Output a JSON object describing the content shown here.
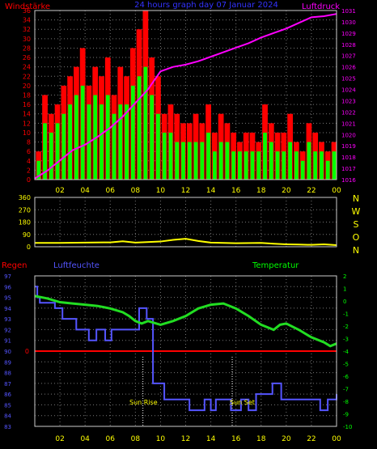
{
  "header": {
    "left": "Windstärke",
    "center": "24 hours graph day  07 Januar 2024",
    "right": "Luftdruck"
  },
  "colors": {
    "background": "#000000",
    "wind_gust": "#ff0000",
    "wind_avg": "#00ff00",
    "pressure": "#ff00ff",
    "wind_dir": "#ffff00",
    "rain": "#ff0000",
    "humidity": "#5555ff",
    "temperature": "#22dd22",
    "left_axis": "#ff0000",
    "right_axis_top": "#ff00ff",
    "right_axis_mid": "#ffff00",
    "humidity_axis": "#5555ff",
    "temperature_axis": "#00ff00",
    "hour_axis": "#ffff00",
    "frame": "#cccccc",
    "grid": "#777777"
  },
  "x_ticks": [
    "02",
    "04",
    "06",
    "08",
    "10",
    "12",
    "14",
    "16",
    "18",
    "20",
    "22",
    "00"
  ],
  "dir_labels": [
    "N",
    "W",
    "S",
    "O",
    "N"
  ],
  "bottom_labels": {
    "rain": "Regen",
    "humidity": "Luftfeuchte",
    "temperature": "Temperatur",
    "sunrise": "Sun Rise",
    "sunset": "Sun Set"
  },
  "chart_data": [
    {
      "type": "bar",
      "title": "24 hours graph day  07 Januar 2024",
      "xlabel": "",
      "ylabel": "Windstärke",
      "y2label": "Luftdruck",
      "x_range": [
        0,
        24
      ],
      "ylim": [
        0,
        36
      ],
      "y_ticks": [
        "0",
        "2",
        "4",
        "6",
        "8",
        "10",
        "12",
        "14",
        "16",
        "18",
        "20",
        "22",
        "24",
        "26",
        "28",
        "30",
        "32",
        "34",
        "36"
      ],
      "y2lim": [
        1016,
        1031
      ],
      "y2_ticks": [
        "1016",
        "1017",
        "1018",
        "1019",
        "1020",
        "1021",
        "1022",
        "1023",
        "1024",
        "1025",
        "1026",
        "1027",
        "1028",
        "1029",
        "1030",
        "1031"
      ],
      "series": [
        {
          "name": "Windstärke",
          "style": "bars",
          "x": [
            0.5,
            1,
            1.5,
            2,
            2.5,
            3,
            3.5,
            4,
            4.5,
            5,
            5.5,
            6,
            6.5,
            7,
            7.5,
            8,
            8.5,
            9,
            9.5,
            10,
            10.5,
            11,
            11.5,
            12,
            12.5,
            13,
            13.5,
            14,
            14.5,
            15,
            15.5,
            16,
            16.5,
            17,
            17.5,
            18,
            18.5,
            19,
            19.5,
            20,
            20.5,
            21,
            21.5,
            22,
            22.5,
            23,
            23.5,
            24
          ],
          "gust": [
            6,
            18,
            14,
            16,
            20,
            22,
            24,
            28,
            20,
            24,
            22,
            26,
            18,
            24,
            22,
            28,
            32,
            36,
            26,
            22,
            14,
            16,
            14,
            12,
            12,
            14,
            12,
            16,
            10,
            14,
            12,
            10,
            8,
            10,
            10,
            8,
            16,
            12,
            10,
            10,
            14,
            8,
            6,
            12,
            10,
            8,
            6,
            8
          ],
          "avg": [
            4,
            12,
            10,
            12,
            14,
            16,
            18,
            20,
            16,
            18,
            16,
            18,
            14,
            16,
            16,
            20,
            22,
            24,
            18,
            14,
            10,
            10,
            8,
            8,
            8,
            8,
            8,
            10,
            6,
            8,
            8,
            6,
            6,
            6,
            6,
            6,
            10,
            8,
            6,
            6,
            8,
            6,
            4,
            8,
            6,
            6,
            4,
            6
          ]
        },
        {
          "name": "Luftdruck",
          "style": "line",
          "axis": "y2",
          "x": [
            0,
            1,
            2,
            3,
            4,
            5,
            6,
            7,
            8,
            9,
            10,
            11,
            12,
            13,
            14,
            15,
            16,
            17,
            18,
            19,
            20,
            21,
            22,
            23,
            24
          ],
          "values": [
            1016.1,
            1016.8,
            1017.7,
            1018.6,
            1019.1,
            1019.8,
            1020.6,
            1021.6,
            1022.8,
            1024.0,
            1025.6,
            1026.0,
            1026.2,
            1026.5,
            1026.9,
            1027.3,
            1027.7,
            1028.1,
            1028.6,
            1029.0,
            1029.4,
            1029.9,
            1030.4,
            1030.5,
            1030.7
          ]
        }
      ]
    },
    {
      "type": "line",
      "xlabel": "",
      "ylabel": "",
      "x_range": [
        0,
        24
      ],
      "ylim": [
        0,
        360
      ],
      "y_ticks": [
        "0",
        "90",
        "180",
        "270",
        "360"
      ],
      "right_labels": [
        "N",
        "W",
        "S",
        "O",
        "N"
      ],
      "series": [
        {
          "style": "line",
          "x": [
            0,
            2,
            4,
            6,
            7,
            8,
            10,
            11,
            12,
            13,
            14,
            16,
            18,
            19,
            20,
            21,
            22,
            23,
            24
          ],
          "values": [
            28,
            28,
            30,
            32,
            40,
            30,
            38,
            50,
            58,
            42,
            30,
            26,
            28,
            22,
            18,
            16,
            14,
            18,
            12
          ]
        }
      ]
    },
    {
      "type": "line",
      "xlabel": "",
      "ylabel": "Luftfeuchte",
      "y2label": "Temperatur",
      "x_range": [
        0,
        24
      ],
      "ylim": [
        83,
        97
      ],
      "y_ticks": [
        "83",
        "84",
        "85",
        "86",
        "87",
        "88",
        "89",
        "90",
        "91",
        "92",
        "93",
        "94",
        "95",
        "96",
        "97"
      ],
      "y2lim": [
        -10,
        2
      ],
      "y2_ticks": [
        "-10",
        "-9",
        "-8",
        "-7",
        "-6",
        "-5",
        "-4",
        "-3",
        "-2",
        "-1",
        "0",
        "1",
        "2"
      ],
      "annotations": [
        "Regen",
        "Sun Rise",
        "Sun Set"
      ],
      "series": [
        {
          "name": "Luftfeuchte",
          "style": "step",
          "x": [
            0,
            0.2,
            0.4,
            1.6,
            2.2,
            3.3,
            4.3,
            4.9,
            5.6,
            6.1,
            7.6,
            8.3,
            8.6,
            8.9,
            9.4,
            10.3,
            11.2,
            11.7,
            12.3,
            12.8,
            13.5,
            14.0,
            14.4,
            15.0,
            15.6,
            16.4,
            17.0,
            17.6,
            18.9,
            19.6,
            20.6,
            21.8,
            22.7,
            23.3,
            24
          ],
          "values": [
            96,
            95,
            94.5,
            94,
            93,
            92,
            91,
            92,
            91,
            92,
            92,
            94,
            94,
            93,
            87,
            85.5,
            85.5,
            85.5,
            84.5,
            84.5,
            85.5,
            84.5,
            85.5,
            85.5,
            84.5,
            85.5,
            84.5,
            86,
            87,
            85.5,
            85.5,
            85.5,
            84.5,
            85.5,
            86
          ]
        },
        {
          "name": "Temperatur",
          "style": "line",
          "axis": "y2",
          "x": [
            0,
            1,
            2,
            3,
            4,
            5,
            6,
            7,
            7.5,
            8,
            8.5,
            9,
            10,
            11,
            12,
            13,
            14,
            15,
            16,
            17,
            18,
            19,
            19.5,
            20,
            21,
            22,
            23,
            23.5,
            24
          ],
          "values": [
            0.4,
            0.2,
            -0.1,
            -0.2,
            -0.3,
            -0.4,
            -0.6,
            -0.9,
            -1.2,
            -1.6,
            -1.8,
            -1.6,
            -1.9,
            -1.6,
            -1.2,
            -0.6,
            -0.3,
            -0.2,
            -0.6,
            -1.2,
            -1.9,
            -2.3,
            -1.9,
            -1.8,
            -2.3,
            -2.9,
            -3.3,
            -3.6,
            -3.4
          ]
        },
        {
          "name": "Regen",
          "style": "line",
          "x": [
            0,
            24
          ],
          "values": [
            90,
            90
          ]
        }
      ]
    }
  ]
}
